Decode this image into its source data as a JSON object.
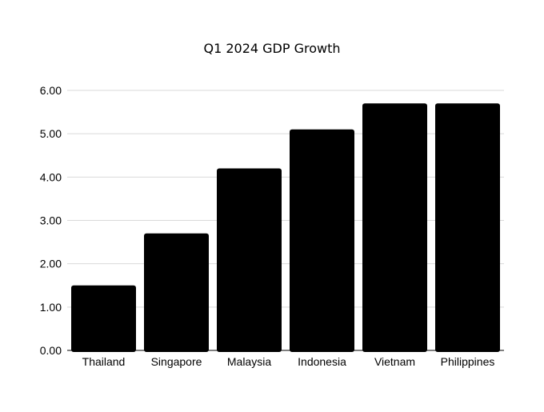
{
  "chart_data": {
    "type": "bar",
    "title": "Q1 2024 GDP Growth",
    "xlabel": "",
    "ylabel": "",
    "categories": [
      "Thailand",
      "Singapore",
      "Malaysia",
      "Indonesia",
      "Vietnam",
      "Philippines"
    ],
    "values": [
      1.5,
      2.7,
      4.2,
      5.1,
      5.7,
      5.7
    ],
    "ylim": [
      0,
      6
    ],
    "yticks": [
      "0.00",
      "1.00",
      "2.00",
      "3.00",
      "4.00",
      "5.00",
      "6.00"
    ],
    "grid": true,
    "legend": "none",
    "colors": {
      "bar": "#000000",
      "grid": "#d9d9d9",
      "text": "#000000"
    }
  }
}
